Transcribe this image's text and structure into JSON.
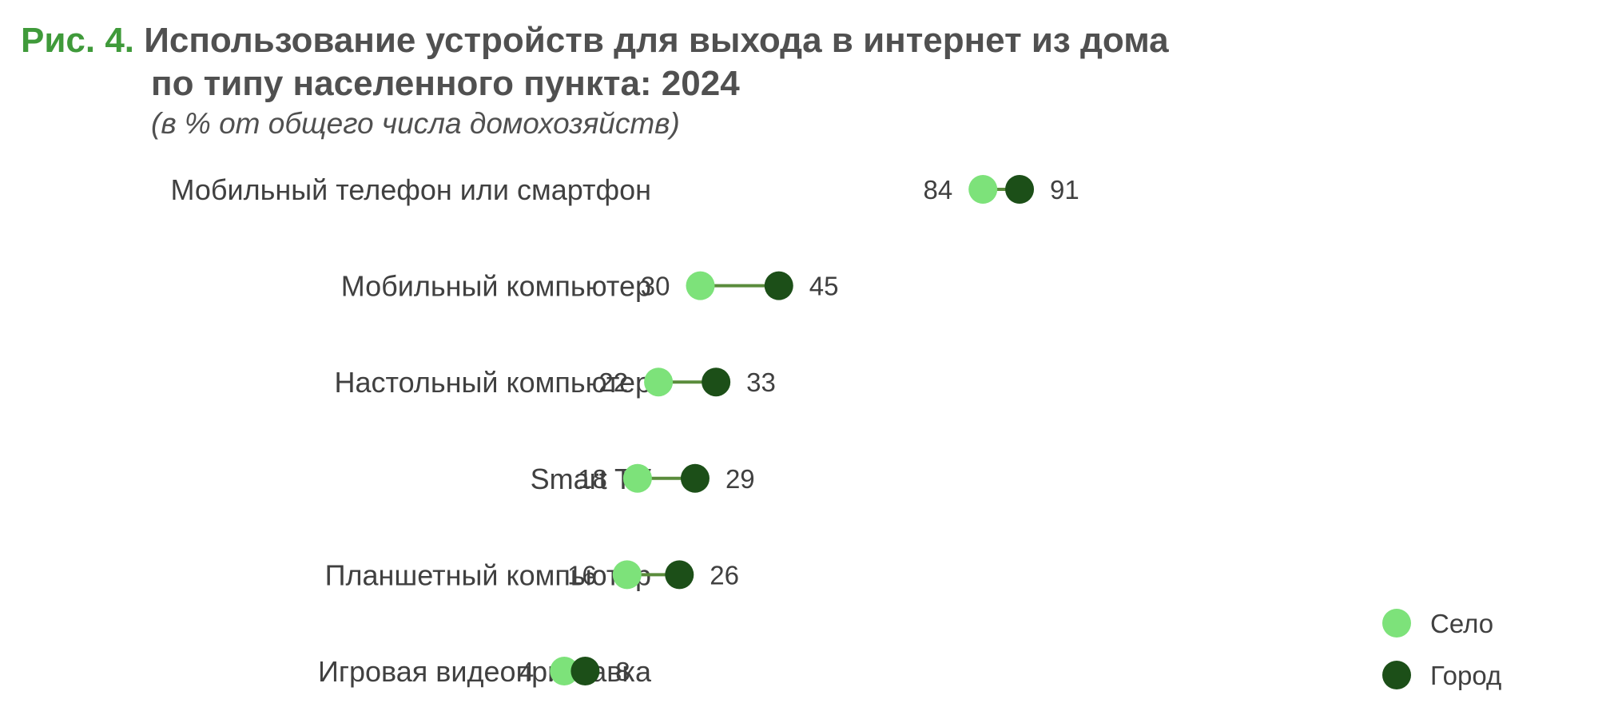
{
  "figure": {
    "prefix": "Рис. 4.",
    "title_line1": "Использование устройств для выхода в интернет из дома",
    "title_line2": "по типу населенного пункта: 2024",
    "subtitle": "(в % от общего числа домохозяйств)"
  },
  "chart_data": {
    "type": "dumbbell",
    "categories": [
      "Мобильный телефон или смартфон",
      "Мобильный компьютер",
      "Настольный компьютер",
      "Smart TV",
      "Планшетный компьютер",
      "Игровая видеоприставка"
    ],
    "series": [
      {
        "name": "Село",
        "values": [
          84,
          30,
          22,
          18,
          16,
          4
        ]
      },
      {
        "name": "Город",
        "values": [
          91,
          45,
          33,
          29,
          26,
          8
        ]
      }
    ],
    "legend_position": "bottom-right",
    "grid": false
  },
  "colors": {
    "village": "#7de27a",
    "city": "#1c4f18",
    "connector": "#5a8c3c",
    "label": "#404040",
    "prefix": "#3f9a3a"
  }
}
